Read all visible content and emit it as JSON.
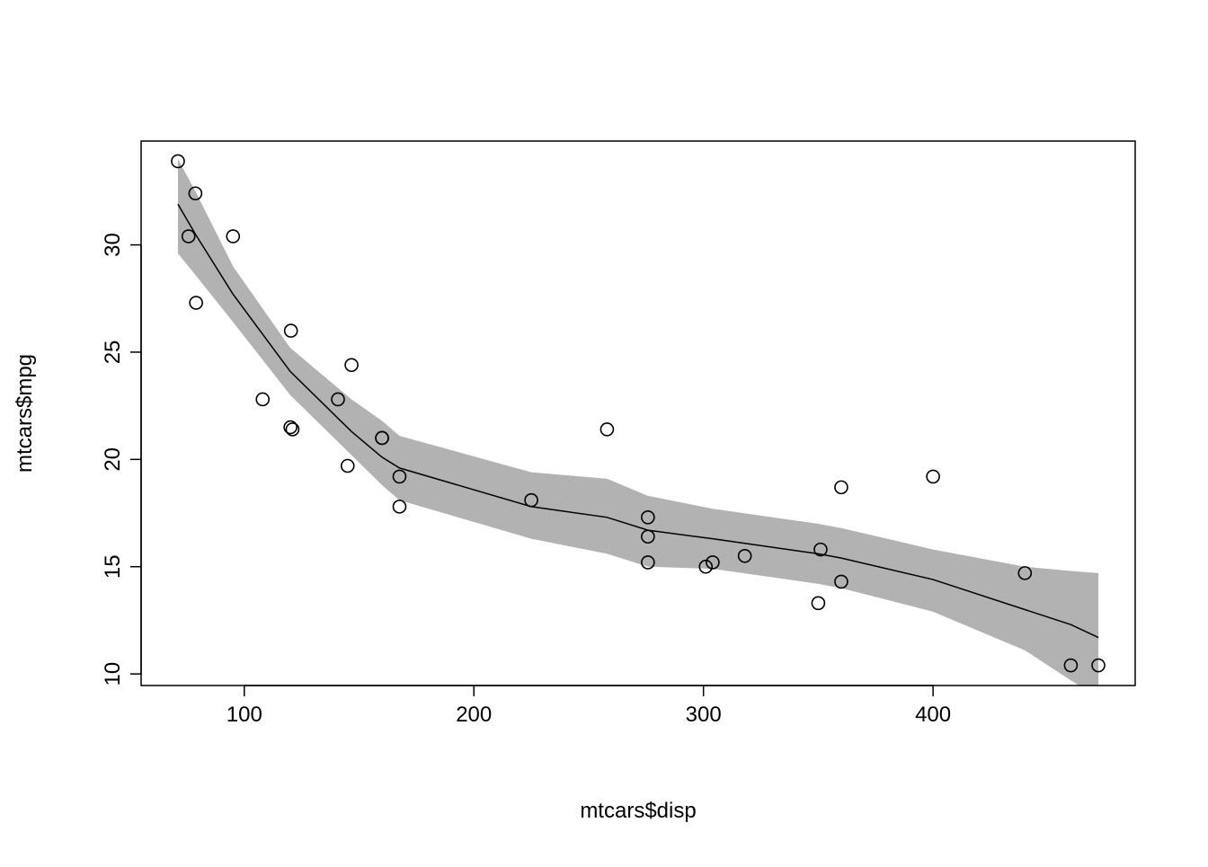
{
  "chart_data": {
    "type": "scatter",
    "title": "",
    "xlabel": "mtcars$disp",
    "ylabel": "mtcars$mpg",
    "xlim": [
      55.06,
      488.04
    ],
    "ylim": [
      9.46,
      34.84
    ],
    "xticks": [
      100,
      200,
      300,
      400
    ],
    "yticks": [
      10,
      15,
      20,
      25,
      30
    ],
    "grid": false,
    "points": {
      "disp": [
        160,
        160,
        108,
        258,
        360,
        225,
        360,
        146.7,
        140.8,
        167.6,
        167.6,
        275.8,
        275.8,
        275.8,
        472,
        460,
        440,
        78.7,
        75.7,
        71.1,
        120.1,
        318,
        304,
        350,
        400,
        79,
        120.3,
        95.1,
        351,
        145,
        301,
        121
      ],
      "mpg": [
        21,
        21,
        22.8,
        21.4,
        18.7,
        18.1,
        14.3,
        24.4,
        22.8,
        19.2,
        17.8,
        16.4,
        17.3,
        15.2,
        10.4,
        10.4,
        14.7,
        32.4,
        30.4,
        33.9,
        21.5,
        15.5,
        15.2,
        13.3,
        19.2,
        27.3,
        26,
        30.4,
        15.8,
        19.7,
        15,
        21.4
      ]
    },
    "smooth": {
      "x": [
        71.1,
        78.7,
        95.1,
        120,
        146.7,
        160,
        167.6,
        225,
        258,
        275.8,
        304,
        350,
        360,
        400,
        440,
        460,
        472
      ],
      "fit": [
        31.9,
        30.5,
        27.7,
        24.1,
        21.3,
        20.1,
        19.6,
        17.8,
        17.3,
        16.7,
        16.3,
        15.6,
        15.4,
        14.4,
        13.0,
        12.3,
        11.7
      ],
      "lower": [
        29.6,
        28.6,
        26.4,
        23.0,
        20.2,
        18.8,
        18.1,
        16.3,
        15.6,
        15.0,
        14.9,
        14.2,
        14.0,
        12.9,
        11.1,
        9.7,
        8.9
      ],
      "upper": [
        34.0,
        32.5,
        29.0,
        25.2,
        22.8,
        21.8,
        21.1,
        19.4,
        19.1,
        18.3,
        17.7,
        17.0,
        16.8,
        15.8,
        15.0,
        14.8,
        14.7
      ]
    },
    "colors": {
      "band": "#b2b2b2",
      "line": "#000000",
      "points": "#000000"
    }
  }
}
